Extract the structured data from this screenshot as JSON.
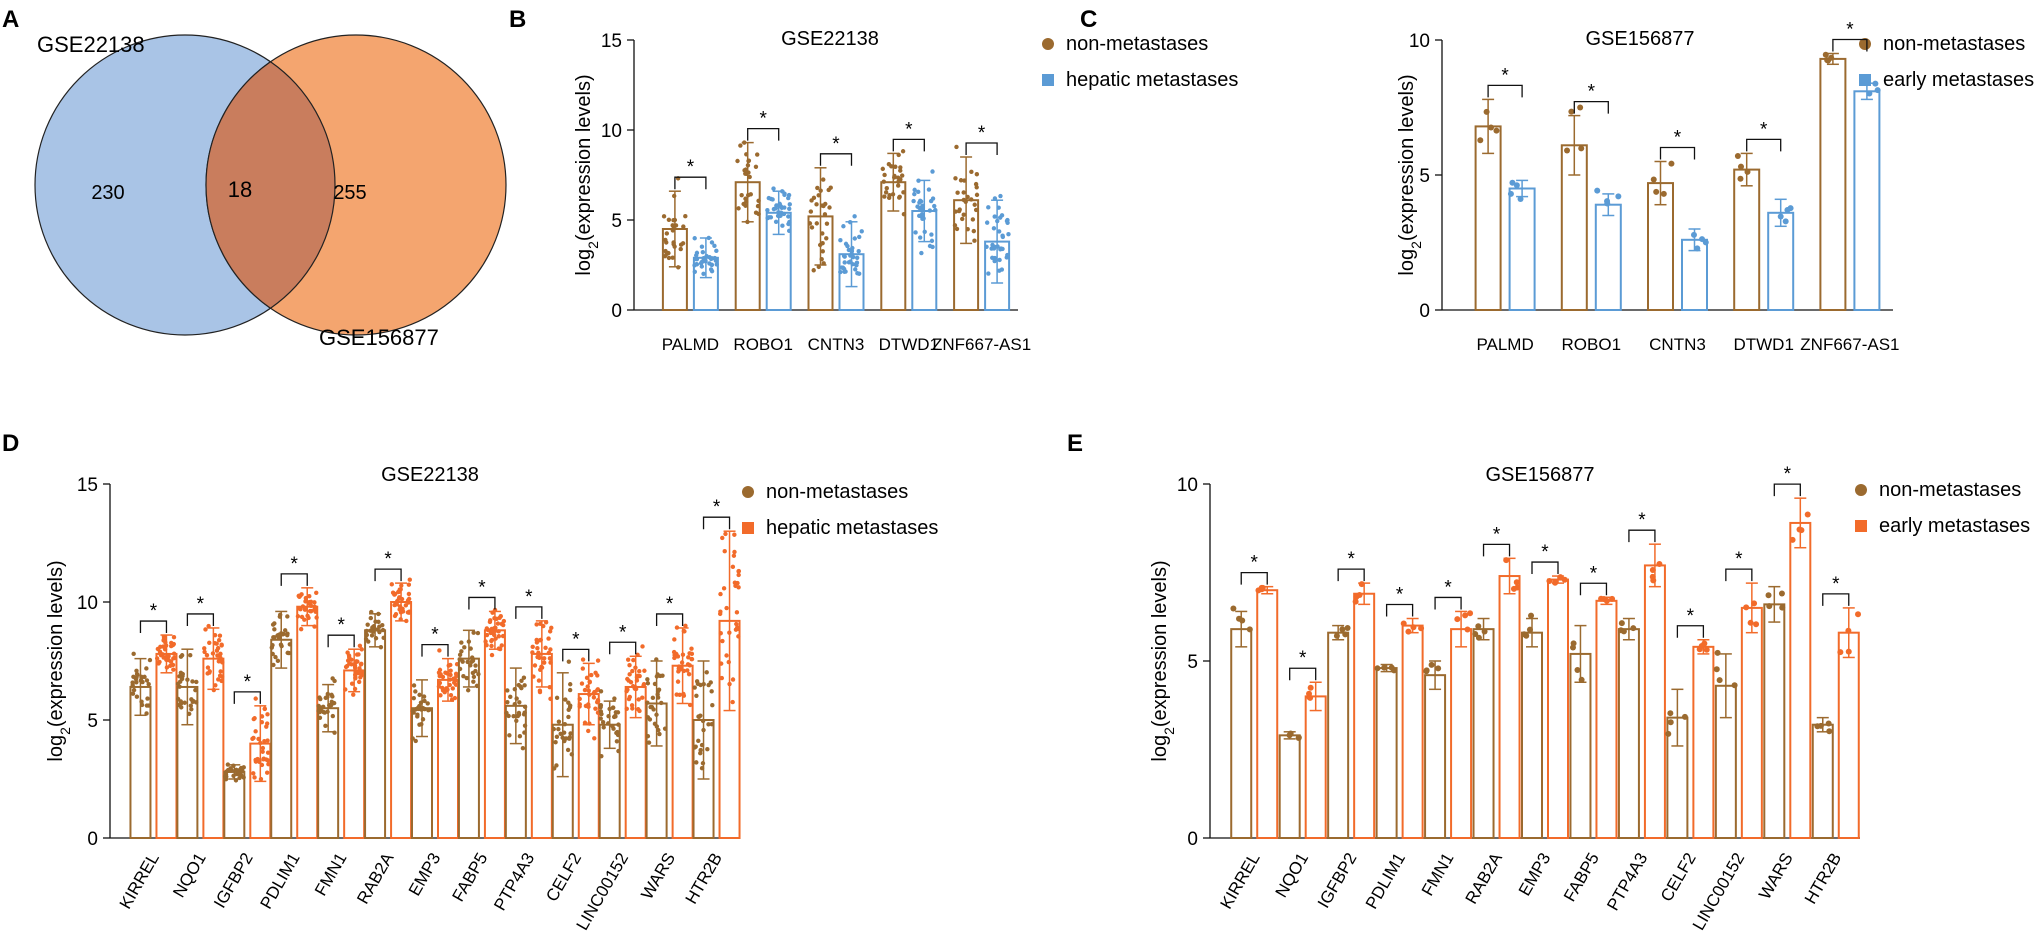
{
  "panel_labels": [
    "A",
    "B",
    "C",
    "D",
    "E"
  ],
  "colors": {
    "brown": "#9b6a2f",
    "blue": "#5b9bd5",
    "orange": "#f26b2a",
    "venn_blue": "#a9c4e6",
    "venn_orange": "#f4a56f",
    "venn_overlap": "#c97d5d"
  },
  "chart_data": [
    {
      "type": "venn",
      "panel": "A",
      "sets": [
        "GSE22138",
        "GSE156877"
      ],
      "left_only": 230,
      "intersection": 18,
      "right_only": 255
    },
    {
      "type": "bar",
      "panel": "B",
      "title": "GSE22138",
      "ylabel": "log2(expression levels)",
      "ylabel_main": "log",
      "ylabel_sub": "2",
      "ylabel_rest": "(expression levels)",
      "ylim": [
        0,
        15
      ],
      "yticks": [
        "0",
        "5",
        "10",
        "15"
      ],
      "categories": [
        "PALMD",
        "ROBO1",
        "CNTN3",
        "DTWD1",
        "ZNF667-AS1"
      ],
      "significance": [
        "*",
        "*",
        "*",
        "*",
        "*"
      ],
      "series": [
        {
          "name": "non-metastases",
          "values": [
            4.5,
            7.1,
            5.2,
            7.1,
            6.1
          ],
          "sd": [
            2.1,
            2.2,
            2.7,
            1.6,
            2.4
          ],
          "n": 28,
          "dot_min": 2.3
        },
        {
          "name": "hepatic metastases",
          "values": [
            2.9,
            5.4,
            3.1,
            5.5,
            3.8
          ],
          "sd": [
            1.1,
            1.2,
            1.8,
            1.7,
            2.3
          ],
          "n": 35,
          "dot_min": 2.3
        }
      ]
    },
    {
      "type": "bar",
      "panel": "C",
      "title": "GSE156877",
      "ylabel": "log2(expression levels)",
      "ylabel_main": "log",
      "ylabel_sub": "2",
      "ylabel_rest": "(expression levels)",
      "ylim": [
        0,
        10
      ],
      "yticks": [
        "0",
        "5",
        "10"
      ],
      "categories": [
        "PALMD",
        "ROBO1",
        "CNTN3",
        "DTWD1",
        "ZNF667-AS1"
      ],
      "significance": [
        "*",
        "*",
        "*",
        "*",
        "*"
      ],
      "series": [
        {
          "name": "non-metastases",
          "values": [
            6.8,
            6.1,
            4.7,
            5.2,
            9.3
          ],
          "sd": [
            1.0,
            1.1,
            0.8,
            0.6,
            0.2
          ],
          "n": 4,
          "dot_min": 0
        },
        {
          "name": "early metastases",
          "values": [
            4.5,
            3.9,
            2.6,
            3.6,
            8.1
          ],
          "sd": [
            0.3,
            0.4,
            0.4,
            0.5,
            0.3
          ],
          "n": 4,
          "dot_min": 0
        }
      ]
    },
    {
      "type": "bar",
      "panel": "D",
      "title": "GSE22138",
      "ylabel": "log2(expression levels)",
      "ylabel_main": "log",
      "ylabel_sub": "2",
      "ylabel_rest": "(expression levels)",
      "ylim": [
        0,
        15
      ],
      "yticks": [
        "0",
        "5",
        "10",
        "15"
      ],
      "categories": [
        "KIRREL",
        "NQO1",
        "IGFBP2",
        "PDLIM1",
        "FMN1",
        "RAB2A",
        "EMP3",
        "FABP5",
        "PTP4A3",
        "CELF2",
        "LINC00152",
        "WARS",
        "HTR2B"
      ],
      "significance": [
        "*",
        "*",
        "*",
        "*",
        "*",
        "*",
        "*",
        "*",
        "*",
        "*",
        "*",
        "*",
        "*"
      ],
      "series": [
        {
          "name": "non-metastases",
          "values": [
            6.4,
            6.4,
            2.8,
            8.4,
            5.5,
            8.8,
            5.5,
            7.6,
            5.6,
            4.8,
            4.8,
            5.7,
            5.0
          ],
          "sd": [
            1.2,
            1.6,
            0.3,
            1.2,
            1.0,
            0.7,
            1.2,
            1.2,
            1.6,
            2.2,
            1.0,
            1.8,
            2.5
          ],
          "n": 28,
          "dot_min": 2.3
        },
        {
          "name": "hepatic metastases",
          "values": [
            7.8,
            7.6,
            4.0,
            9.8,
            7.1,
            10.0,
            6.7,
            8.8,
            7.8,
            6.1,
            6.4,
            7.3,
            9.2
          ],
          "sd": [
            0.8,
            1.3,
            1.6,
            0.8,
            0.9,
            0.8,
            0.9,
            0.8,
            1.4,
            1.3,
            1.3,
            1.6,
            3.8
          ],
          "n": 35,
          "dot_min": 2.6
        }
      ]
    },
    {
      "type": "bar",
      "panel": "E",
      "title": "GSE156877",
      "ylabel": "log2(expression levels)",
      "ylabel_main": "log",
      "ylabel_sub": "2",
      "ylabel_rest": "(expression levels)",
      "ylim": [
        0,
        10
      ],
      "yticks": [
        "0",
        "5",
        "10"
      ],
      "categories": [
        "KIRREL",
        "NQO1",
        "IGFBP2",
        "PDLIM1",
        "FMN1",
        "RAB2A",
        "EMP3",
        "FABP5",
        "PTP4A3",
        "CELF2",
        "LINC00152",
        "WARS",
        "HTR2B"
      ],
      "significance": [
        "*",
        "*",
        "*",
        "*",
        "*",
        "*",
        "*",
        "*",
        "*",
        "*",
        "*",
        "*",
        "*"
      ],
      "series": [
        {
          "name": "non-metastases",
          "values": [
            5.9,
            2.9,
            5.8,
            4.8,
            4.6,
            5.9,
            5.8,
            5.2,
            5.9,
            3.4,
            4.3,
            6.6,
            3.2
          ],
          "sd": [
            0.5,
            0.1,
            0.2,
            0.1,
            0.4,
            0.3,
            0.4,
            0.8,
            0.3,
            0.8,
            0.9,
            0.5,
            0.2
          ],
          "n": 4,
          "dot_min": 0
        },
        {
          "name": "early metastases",
          "values": [
            7.0,
            4.0,
            6.9,
            6.0,
            5.9,
            7.4,
            7.3,
            6.7,
            7.7,
            5.4,
            6.5,
            8.9,
            5.8
          ],
          "sd": [
            0.1,
            0.4,
            0.3,
            0.2,
            0.5,
            0.5,
            0.1,
            0.1,
            0.6,
            0.2,
            0.7,
            0.7,
            0.7
          ],
          "n": 4,
          "dot_min": 0
        }
      ]
    }
  ]
}
